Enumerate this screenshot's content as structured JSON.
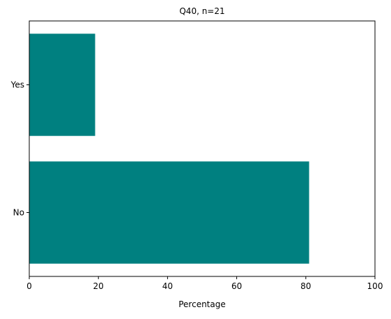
{
  "chart_data": {
    "type": "bar",
    "orientation": "horizontal",
    "title": "Q40, n=21",
    "xlabel": "Percentage",
    "ylabel": "",
    "categories": [
      "Yes",
      "No"
    ],
    "values": [
      19.05,
      80.95
    ],
    "xlim": [
      0,
      100
    ],
    "xticks": [
      "0",
      "20",
      "40",
      "60",
      "80",
      "100"
    ],
    "bar_color": "#008080",
    "grid": false,
    "legend": "none"
  }
}
